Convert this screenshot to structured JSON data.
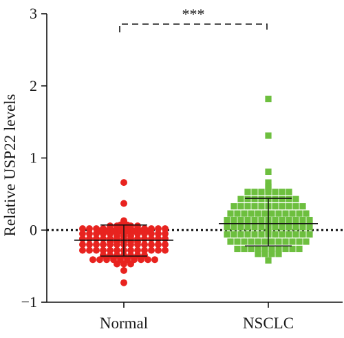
{
  "chart_data": {
    "type": "scatter",
    "title": "",
    "xlabel": "",
    "ylabel": "Relative USP22 levels",
    "ylim": [
      -1,
      3
    ],
    "yticks": [
      -1,
      0,
      1,
      2,
      3
    ],
    "ytick_labels": [
      "−1",
      "0",
      "1",
      "2",
      "3"
    ],
    "categories": [
      "Normal",
      "NSCLC"
    ],
    "reference_line": 0,
    "significance": {
      "label": "***",
      "between": [
        "Normal",
        "NSCLC"
      ]
    },
    "series": [
      {
        "color": "#e8231f",
        "marker": "circle",
        "mean": -0.14,
        "sd_upper": 0.07,
        "sd_lower": -0.36,
        "values": [
          0.66,
          0.37,
          0.13,
          0.11,
          0.07,
          0.07,
          0.06,
          0.05,
          0.03,
          0.02,
          0.02,
          0.02,
          0.02,
          0.02,
          0.02,
          0.02,
          0.02,
          0.02,
          0.02,
          0.02,
          0.02,
          0.02,
          0.02,
          0.02,
          0.02,
          0.02,
          0.02,
          -0.05,
          -0.05,
          -0.05,
          -0.05,
          -0.05,
          -0.05,
          -0.05,
          -0.05,
          -0.05,
          -0.05,
          -0.05,
          -0.05,
          -0.05,
          -0.05,
          -0.05,
          -0.05,
          -0.05,
          -0.05,
          -0.05,
          -0.05,
          -0.05,
          -0.12,
          -0.12,
          -0.12,
          -0.12,
          -0.12,
          -0.12,
          -0.12,
          -0.12,
          -0.12,
          -0.12,
          -0.12,
          -0.12,
          -0.12,
          -0.12,
          -0.12,
          -0.12,
          -0.2,
          -0.2,
          -0.2,
          -0.2,
          -0.2,
          -0.2,
          -0.2,
          -0.2,
          -0.2,
          -0.2,
          -0.2,
          -0.2,
          -0.2,
          -0.2,
          -0.2,
          -0.2,
          -0.2,
          -0.2,
          -0.28,
          -0.28,
          -0.28,
          -0.28,
          -0.28,
          -0.28,
          -0.28,
          -0.28,
          -0.28,
          -0.28,
          -0.28,
          -0.28,
          -0.28,
          -0.35,
          -0.35,
          -0.35,
          -0.35,
          -0.35,
          -0.35,
          -0.35,
          -0.41,
          -0.41,
          -0.41,
          -0.41,
          -0.41,
          -0.41,
          -0.41,
          -0.41,
          -0.41,
          -0.41,
          -0.47,
          -0.47,
          -0.47,
          -0.56,
          -0.73
        ]
      },
      {
        "color": "#6dbf3f",
        "marker": "square",
        "mean": 0.09,
        "sd_upper": 0.44,
        "sd_lower": -0.22,
        "values": [
          1.82,
          1.31,
          0.81,
          0.66,
          0.6,
          0.57,
          0.53,
          0.53,
          0.53,
          0.53,
          0.53,
          0.53,
          0.53,
          0.43,
          0.43,
          0.43,
          0.43,
          0.43,
          0.43,
          0.43,
          0.43,
          0.43,
          0.33,
          0.33,
          0.33,
          0.33,
          0.33,
          0.33,
          0.33,
          0.33,
          0.33,
          0.33,
          0.33,
          0.23,
          0.23,
          0.23,
          0.23,
          0.23,
          0.23,
          0.23,
          0.23,
          0.23,
          0.23,
          0.23,
          0.23,
          0.14,
          0.14,
          0.14,
          0.14,
          0.14,
          0.14,
          0.14,
          0.14,
          0.14,
          0.14,
          0.14,
          0.14,
          0.14,
          0.04,
          0.04,
          0.04,
          0.04,
          0.04,
          0.04,
          0.04,
          0.04,
          0.04,
          0.04,
          0.04,
          0.04,
          0.04,
          0.04,
          -0.06,
          -0.06,
          -0.06,
          -0.06,
          -0.06,
          -0.06,
          -0.06,
          -0.06,
          -0.06,
          -0.06,
          -0.06,
          -0.06,
          -0.06,
          -0.06,
          -0.16,
          -0.16,
          -0.16,
          -0.16,
          -0.16,
          -0.16,
          -0.16,
          -0.16,
          -0.16,
          -0.16,
          -0.16,
          -0.16,
          -0.26,
          -0.26,
          -0.26,
          -0.26,
          -0.26,
          -0.26,
          -0.26,
          -0.26,
          -0.26,
          -0.26,
          -0.33,
          -0.33,
          -0.33,
          -0.33,
          -0.42
        ]
      }
    ]
  }
}
